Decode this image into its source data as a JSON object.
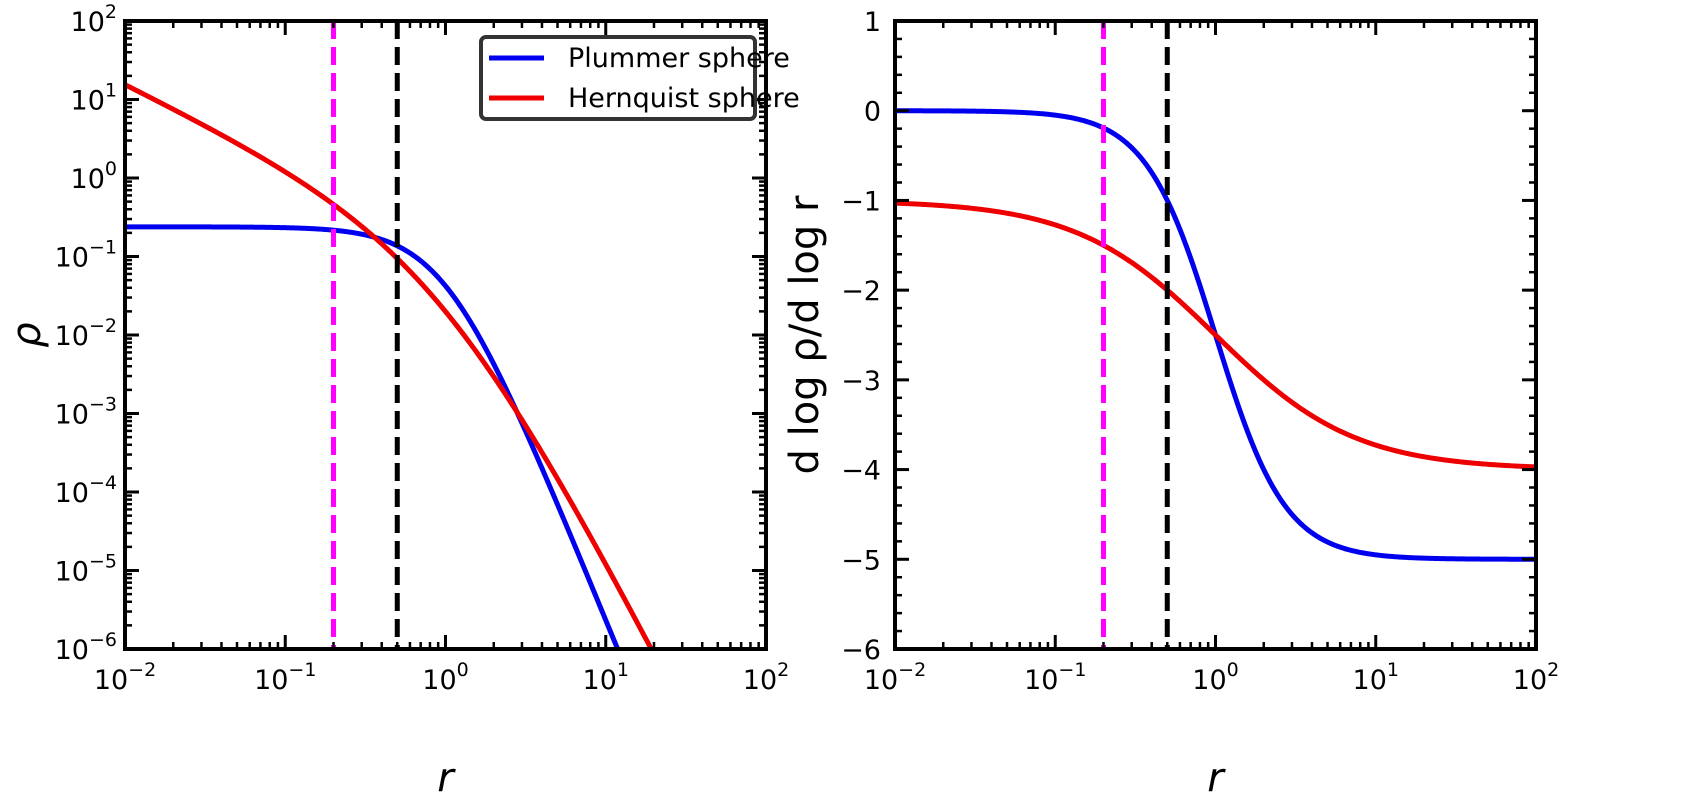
{
  "chart_data": [
    {
      "type": "line",
      "xscale": "log",
      "yscale": "log",
      "xlim": [
        0.01,
        100
      ],
      "ylim": [
        1e-06,
        100
      ],
      "xlabel": "r",
      "ylabel": "ρ",
      "xticks": [
        {
          "value": 0.01,
          "base": "10",
          "exp": "−2"
        },
        {
          "value": 0.1,
          "base": "10",
          "exp": "−1"
        },
        {
          "value": 1,
          "base": "10",
          "exp": "0"
        },
        {
          "value": 10,
          "base": "10",
          "exp": "1"
        },
        {
          "value": 100,
          "base": "10",
          "exp": "2"
        }
      ],
      "yticks": [
        {
          "value": 1e-06,
          "base": "10",
          "exp": "−6"
        },
        {
          "value": 1e-05,
          "base": "10",
          "exp": "−5"
        },
        {
          "value": 0.0001,
          "base": "10",
          "exp": "−4"
        },
        {
          "value": 0.001,
          "base": "10",
          "exp": "−3"
        },
        {
          "value": 0.01,
          "base": "10",
          "exp": "−2"
        },
        {
          "value": 0.1,
          "base": "10",
          "exp": "−1"
        },
        {
          "value": 1,
          "base": "10",
          "exp": "0"
        },
        {
          "value": 10,
          "base": "10",
          "exp": "1"
        },
        {
          "value": 100,
          "base": "10",
          "exp": "2"
        }
      ],
      "series": [
        {
          "name": "Plummer sphere",
          "color": "#0000ee",
          "model": "plummer_density",
          "a": 1
        },
        {
          "name": "Hernquist sphere",
          "color": "#ee0000",
          "model": "hernquist_density",
          "a": 1
        }
      ],
      "vlines": [
        {
          "x": 0.2,
          "color": "#ff00ff",
          "style": "dashed"
        },
        {
          "x": 0.5,
          "color": "#000000",
          "style": "dashed"
        }
      ],
      "legend": {
        "location": "upper right",
        "entries": [
          "Plummer sphere",
          "Hernquist sphere"
        ]
      }
    },
    {
      "type": "line",
      "xscale": "log",
      "yscale": "linear",
      "xlim": [
        0.01,
        100
      ],
      "ylim": [
        -6,
        1
      ],
      "xlabel": "r",
      "ylabel": "d log ρ/d log r",
      "xticks": [
        {
          "value": 0.01,
          "base": "10",
          "exp": "−2"
        },
        {
          "value": 0.1,
          "base": "10",
          "exp": "−1"
        },
        {
          "value": 1,
          "base": "10",
          "exp": "0"
        },
        {
          "value": 10,
          "base": "10",
          "exp": "1"
        },
        {
          "value": 100,
          "base": "10",
          "exp": "2"
        }
      ],
      "yticks": [
        {
          "value": -6,
          "label": "−6"
        },
        {
          "value": -5,
          "label": "−5"
        },
        {
          "value": -4,
          "label": "−4"
        },
        {
          "value": -3,
          "label": "−3"
        },
        {
          "value": -2,
          "label": "−2"
        },
        {
          "value": -1,
          "label": "−1"
        },
        {
          "value": 0,
          "label": "0"
        },
        {
          "value": 1,
          "label": "1"
        }
      ],
      "series": [
        {
          "name": "Plummer sphere",
          "color": "#0000ee",
          "model": "plummer_slope",
          "a": 1
        },
        {
          "name": "Hernquist sphere",
          "color": "#ee0000",
          "model": "hernquist_slope",
          "a": 1
        }
      ],
      "vlines": [
        {
          "x": 0.2,
          "color": "#ff00ff",
          "style": "dashed"
        },
        {
          "x": 0.5,
          "color": "#000000",
          "style": "dashed"
        }
      ]
    }
  ]
}
